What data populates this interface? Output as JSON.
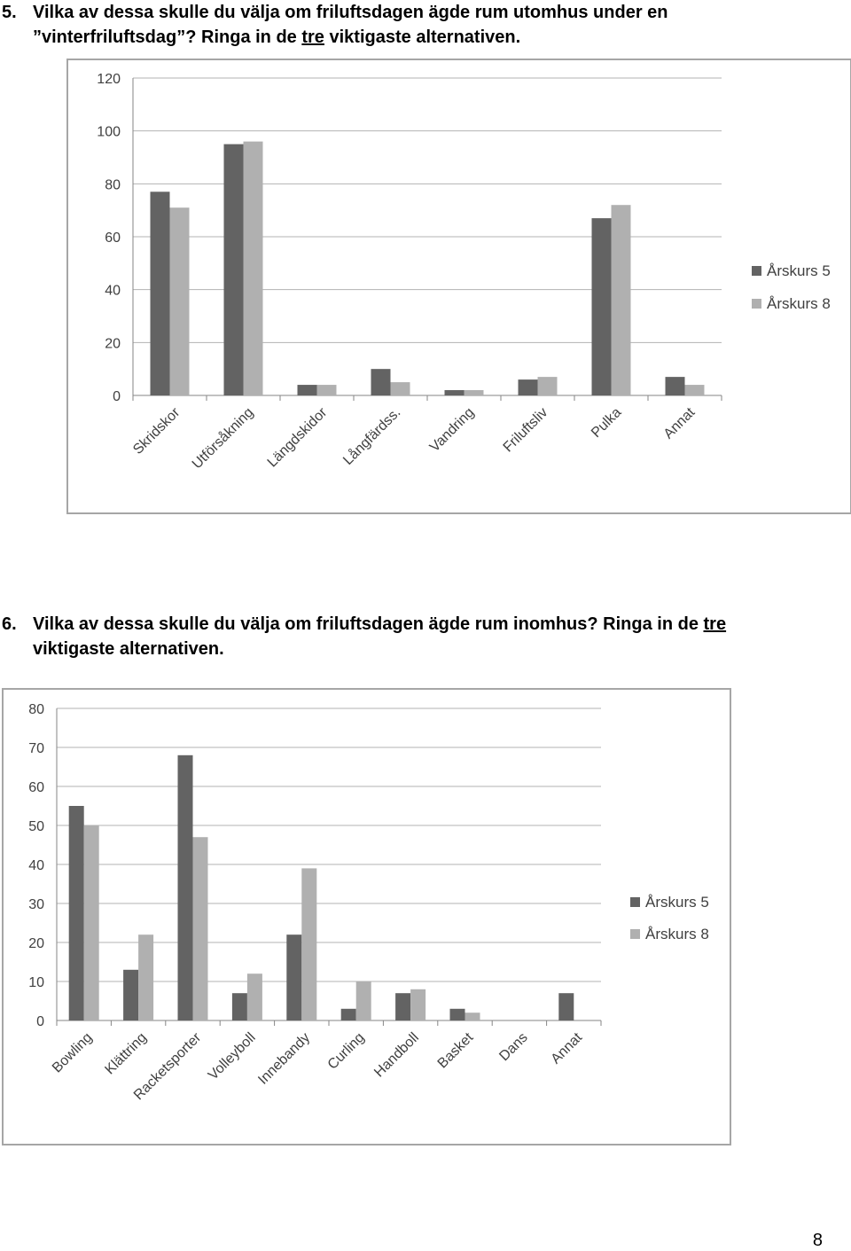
{
  "questions": [
    {
      "number": "5.",
      "line1": "Vilka av dessa skulle du välja om friluftsdagen ägde rum utomhus under en",
      "line2_pre": "”vinterfriluftsdag”? Ringa in de ",
      "line2_u": "tre",
      "line2_post": " viktigaste alternativen."
    },
    {
      "number": "6.",
      "line1_pre": "Vilka av dessa skulle du välja om friluftsdagen ägde rum inomhus? Ringa in de ",
      "line1_u": "tre",
      "line2": "viktigaste alternativen."
    }
  ],
  "chart_data": [
    {
      "type": "bar",
      "categories": [
        "Skridskor",
        "Utförsåkning",
        "Längdskidor",
        "Långfärdss.",
        "Vandring",
        "Friluftsliv",
        "Pulka",
        "Annat"
      ],
      "series": [
        {
          "name": "Årskurs 5",
          "color": "#636363",
          "values": [
            77,
            95,
            4,
            10,
            2,
            6,
            67,
            7
          ]
        },
        {
          "name": "Årskurs 8",
          "color": "#b0b0b0",
          "values": [
            71,
            96,
            4,
            5,
            2,
            7,
            72,
            4
          ]
        }
      ],
      "yticks": [
        "0",
        "20",
        "40",
        "60",
        "80",
        "100",
        "120"
      ],
      "ylim": [
        0,
        120
      ],
      "grid": true,
      "legend": "right"
    },
    {
      "type": "bar",
      "categories": [
        "Bowling",
        "Klättring",
        "Racketsporter",
        "Volleyboll",
        "Innebandy",
        "Curling",
        "Handboll",
        "Basket",
        "Dans",
        "Annat"
      ],
      "series": [
        {
          "name": "Årskurs 5",
          "color": "#636363",
          "values": [
            55,
            13,
            68,
            7,
            22,
            3,
            7,
            3,
            0,
            7
          ]
        },
        {
          "name": "Årskurs 8",
          "color": "#b0b0b0",
          "values": [
            50,
            22,
            47,
            12,
            39,
            10,
            8,
            2,
            0,
            0
          ]
        }
      ],
      "yticks": [
        "0",
        "10",
        "20",
        "30",
        "40",
        "50",
        "60",
        "70",
        "80"
      ],
      "ylim": [
        0,
        80
      ],
      "grid": true,
      "legend": "right"
    }
  ],
  "page_number": "8"
}
